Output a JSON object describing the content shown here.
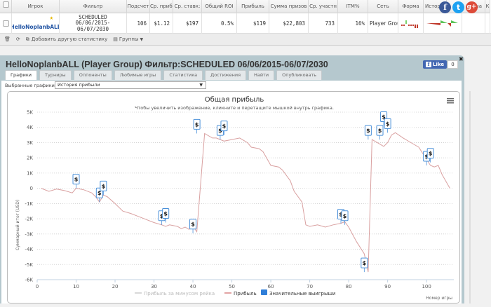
{
  "grid": {
    "headers": [
      "Игрок",
      "Фильтр",
      "Подсчет",
      "Ср. прибь",
      "Ср. ставк:",
      "Общий ROI",
      "Прибыль",
      "Сумма призов",
      "Ср. участн",
      "ITM%",
      "Сеть",
      "Форма",
      "Истор",
      "на",
      "К"
    ],
    "row": {
      "player": "HelloNoplanbALL",
      "filter_line1": "SCHEDULED",
      "filter_line2": "06/06/2015-",
      "filter_line3": "06/07/2030",
      "count": "106",
      "avg_profit": "$1.12",
      "avg_stake": "$197",
      "roi": "0.5%",
      "profit": "$119",
      "prize_sum": "$22,803",
      "avg_entrants": "733",
      "itm": "16%",
      "network": "Player Group"
    }
  },
  "toolbar": {
    "add_stats": "Добавить другую статистику",
    "groups": "Группы"
  },
  "social": {
    "facebook": "f",
    "twitter": "t",
    "google": "g+"
  },
  "panel": {
    "title": "HelloNoplanbALL (Player Group) Фильтр:SCHEDULED 06/06/2015-06/07/2030",
    "like_label": "Like",
    "like_count": "0",
    "tabs": [
      "Графики",
      "Турниры",
      "Оппоненты",
      "Любимые игры",
      "Статистика",
      "Достижения",
      "Найти",
      "Опубликовать"
    ],
    "selector_label": "Выбранные графики:",
    "selector_value": "История прибыли"
  },
  "colors": {
    "line": "#d9a0a0",
    "marker": "#4a90d9",
    "header_bg": "#b5c8ce",
    "legend_blue": "#2f7ed8"
  },
  "chart_data": {
    "type": "line",
    "title": "Общая прибыль",
    "subtitle": "Чтобы увеличить изображение, кликните и перетащите мышкой внутрь графика.",
    "xlabel": "Номер игры",
    "ylabel": "Суммарный итог (USD)",
    "xlim": [
      0,
      107
    ],
    "ylim": [
      -6000,
      5000
    ],
    "x_ticks": [
      "0",
      "10",
      "20",
      "30",
      "40",
      "50",
      "60",
      "70",
      "80",
      "90",
      "100"
    ],
    "y_ticks": [
      "5K",
      "4K",
      "3K",
      "2K",
      "1K",
      "0",
      "-1K",
      "-2K",
      "-3K",
      "-4K",
      "-5K",
      "-6K"
    ],
    "grid": true,
    "legend": [
      "Прибыль за минусом рейка",
      "Прибыль",
      "Значительные выигрыши"
    ],
    "legend_position": "bottom",
    "series": [
      {
        "name": "Прибыль",
        "x": [
          1,
          3,
          5,
          7,
          9,
          10,
          12,
          14,
          15,
          16,
          17,
          18,
          20,
          22,
          24,
          26,
          28,
          30,
          32,
          33,
          34,
          36,
          37,
          38,
          39,
          40,
          41,
          43,
          45,
          46,
          47,
          48,
          50,
          52,
          54,
          55,
          57,
          58,
          60,
          62,
          63,
          65,
          66,
          68,
          69,
          70,
          72,
          74,
          76,
          78,
          79,
          80,
          82,
          84,
          85,
          86,
          88,
          89,
          90,
          91,
          92,
          94,
          96,
          98,
          100,
          101,
          102,
          103,
          104,
          106
        ],
        "y": [
          0,
          -200,
          -50,
          -150,
          -300,
          0,
          -100,
          -300,
          -550,
          -900,
          -450,
          -550,
          -1000,
          -1500,
          -1650,
          -1850,
          -2050,
          -2250,
          -2400,
          -2500,
          -2400,
          -2500,
          -2650,
          -2550,
          -2700,
          -2500,
          -2850,
          3600,
          3300,
          3300,
          3200,
          3100,
          3200,
          3300,
          3000,
          2700,
          2600,
          2400,
          1500,
          1400,
          1200,
          500,
          -200,
          -900,
          -2400,
          -2500,
          -2400,
          -2550,
          -2400,
          -2300,
          -2200,
          -2550,
          -3500,
          -4300,
          -5500,
          3200,
          2900,
          2750,
          3000,
          3500,
          3650,
          3300,
          3000,
          2700,
          1900,
          1500,
          1400,
          1500,
          900,
          0
        ]
      }
    ],
    "big_wins": [
      {
        "x": 10,
        "y": 0
      },
      {
        "x": 16,
        "y": -900
      },
      {
        "x": 17,
        "y": -450
      },
      {
        "x": 32,
        "y": -2400
      },
      {
        "x": 33,
        "y": -2250
      },
      {
        "x": 40,
        "y": -2950
      },
      {
        "x": 41,
        "y": 3600
      },
      {
        "x": 47,
        "y": 3200
      },
      {
        "x": 48,
        "y": 3500
      },
      {
        "x": 78,
        "y": -2300
      },
      {
        "x": 79,
        "y": -2400
      },
      {
        "x": 84,
        "y": -5500
      },
      {
        "x": 85,
        "y": 3200
      },
      {
        "x": 88,
        "y": 3200
      },
      {
        "x": 89,
        "y": 4100
      },
      {
        "x": 90,
        "y": 3650
      },
      {
        "x": 100,
        "y": 1500
      },
      {
        "x": 101,
        "y": 1700
      }
    ]
  }
}
